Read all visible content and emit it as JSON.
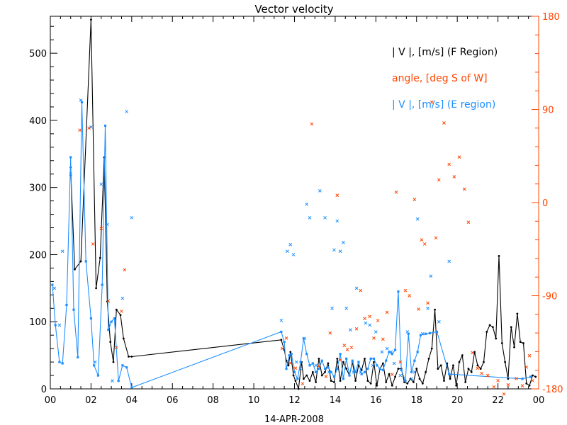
{
  "chart_data": {
    "type": "line",
    "title": "Vector velocity",
    "xlabel": "14-APR-2008",
    "x_ticks": [
      "00",
      "02",
      "04",
      "06",
      "08",
      "10",
      "12",
      "14",
      "16",
      "18",
      "20",
      "22",
      "00"
    ],
    "xlim": [
      0,
      24
    ],
    "ylim_left": [
      0,
      555
    ],
    "y_ticks_left": [
      "0",
      "100",
      "200",
      "300",
      "400",
      "500"
    ],
    "ylim_right": [
      -180,
      180
    ],
    "y_ticks_right": [
      "-180",
      "-90",
      "0",
      "90",
      "180"
    ],
    "colors": {
      "f_region": "#000000",
      "angle": "#ff4500",
      "e_region": "#1e90ff",
      "axis": "#000000",
      "right_axis": "#ff4500"
    },
    "legend": [
      {
        "label": "| V |, [m/s] (F Region)",
        "color": "#000000"
      },
      {
        "label": "angle, [deg S of W]",
        "color": "#ff4500"
      },
      {
        "label": "| V |, [m/s] (E region)",
        "color": "#1e90ff"
      }
    ],
    "series": [
      {
        "name": "| V |, [m/s] (F Region)",
        "axis": "left",
        "color": "#000000",
        "marker": "dot",
        "x": [
          1.0,
          1.2,
          1.5,
          2.0,
          2.25,
          2.45,
          2.65,
          2.8,
          2.95,
          3.1,
          3.25,
          3.45,
          3.6,
          3.85,
          4.0,
          11.35,
          11.5,
          11.6,
          11.7,
          11.8,
          11.95,
          12.05,
          12.2,
          12.35,
          12.45,
          12.6,
          12.75,
          12.9,
          13.05,
          13.2,
          13.35,
          13.5,
          13.65,
          13.8,
          13.95,
          14.1,
          14.25,
          14.4,
          14.55,
          14.7,
          14.85,
          15.0,
          15.15,
          15.3,
          15.45,
          15.6,
          15.75,
          15.9,
          16.05,
          16.2,
          16.35,
          16.5,
          16.65,
          16.8,
          16.95,
          17.1,
          17.25,
          17.4,
          17.55,
          17.7,
          17.85,
          18.0,
          18.15,
          18.3,
          18.45,
          18.6,
          18.75,
          18.9,
          19.05,
          19.2,
          19.35,
          19.5,
          19.65,
          19.8,
          19.95,
          20.1,
          20.25,
          20.4,
          20.55,
          20.7,
          20.85,
          21.0,
          21.15,
          21.3,
          21.45,
          21.6,
          21.75,
          21.9,
          22.05,
          22.2,
          22.35,
          22.5,
          22.65,
          22.8,
          22.95,
          23.1,
          23.25,
          23.4,
          23.55,
          23.7,
          23.85
        ],
        "y": [
          330,
          178,
          190,
          550,
          150,
          195,
          345,
          130,
          70,
          40,
          118,
          110,
          75,
          48,
          48,
          73,
          58,
          42,
          35,
          55,
          20,
          12,
          0,
          40,
          15,
          20,
          12,
          25,
          10,
          45,
          20,
          25,
          38,
          12,
          10,
          45,
          12,
          40,
          30,
          20,
          40,
          12,
          35,
          28,
          45,
          12,
          8,
          40,
          5,
          30,
          38,
          10,
          22,
          5,
          18,
          30,
          30,
          10,
          8,
          15,
          10,
          30,
          15,
          8,
          25,
          45,
          60,
          118,
          30,
          35,
          12,
          38,
          15,
          35,
          5,
          40,
          50,
          10,
          30,
          25,
          55,
          35,
          30,
          40,
          85,
          95,
          92,
          75,
          198,
          68,
          40,
          15,
          92,
          62,
          112,
          70,
          68,
          8,
          5,
          20,
          18
        ]
      },
      {
        "name": "| V |, [m/s] (E region)",
        "axis": "left",
        "color": "#1e90ff",
        "marker": "square",
        "x": [
          0.1,
          0.25,
          0.45,
          0.6,
          0.8,
          1.0,
          1.15,
          1.35,
          1.55,
          1.75,
          2.0,
          2.15,
          2.35,
          2.55,
          2.7,
          2.85,
          3.0,
          3.15,
          3.35,
          3.55,
          3.75,
          4.0,
          11.35,
          11.5,
          11.6,
          11.75,
          11.85,
          12.0,
          12.15,
          12.3,
          12.45,
          12.6,
          12.75,
          12.9,
          13.05,
          13.2,
          13.35,
          13.5,
          13.65,
          13.8,
          13.95,
          14.1,
          14.25,
          14.4,
          14.55,
          14.7,
          14.85,
          15.0,
          15.15,
          15.3,
          15.45,
          15.6,
          15.75,
          15.9,
          16.05,
          16.2,
          16.35,
          16.5,
          16.65,
          16.8,
          16.95,
          17.1,
          17.25,
          17.45,
          17.6,
          17.75,
          17.9,
          18.05,
          18.2,
          18.45,
          18.65,
          19.0,
          19.6,
          23.2,
          23.6
        ],
        "y": [
          155,
          95,
          40,
          38,
          125,
          345,
          118,
          47,
          427,
          190,
          105,
          35,
          20,
          155,
          392,
          88,
          100,
          105,
          12,
          35,
          32,
          2,
          85,
          70,
          30,
          50,
          52,
          25,
          15,
          40,
          75,
          52,
          35,
          38,
          25,
          30,
          42,
          30,
          32,
          25,
          18,
          30,
          52,
          15,
          45,
          20,
          42,
          25,
          40,
          22,
          25,
          30,
          45,
          45,
          35,
          30,
          28,
          42,
          55,
          52,
          58,
          145,
          28,
          12,
          82,
          25,
          42,
          55,
          80,
          82,
          83,
          85,
          22,
          15,
          18
        ]
      },
      {
        "name": "E region (unconnected)",
        "axis": "left",
        "color": "#1e90ff",
        "marker": "x",
        "x": [
          0.2,
          0.45,
          0.6,
          1.0,
          1.5,
          2.0,
          2.2,
          2.5,
          2.8,
          3.05,
          3.55,
          3.75,
          4.0,
          11.35,
          11.65,
          11.8,
          11.95,
          12.1,
          12.3,
          12.5,
          12.6,
          12.75,
          13.05,
          13.25,
          13.5,
          13.7,
          13.85,
          13.95,
          14.1,
          14.25,
          14.4,
          14.55,
          14.75,
          14.9,
          15.05,
          15.25,
          15.5,
          15.7,
          15.85,
          16.0,
          16.3,
          16.55,
          16.75,
          16.9,
          17.2,
          17.55,
          17.75,
          17.9,
          18.05,
          18.3,
          18.55,
          18.7,
          19.1,
          19.6
        ],
        "y": [
          150,
          95,
          205,
          320,
          430,
          390,
          40,
          305,
          245,
          12,
          135,
          413,
          255,
          102,
          205,
          215,
          200,
          40,
          30,
          75,
          275,
          255,
          35,
          295,
          255,
          25,
          120,
          207,
          250,
          205,
          218,
          120,
          88,
          25,
          150,
          25,
          98,
          95,
          35,
          85,
          55,
          60,
          55,
          38,
          20,
          85,
          15,
          25,
          253,
          82,
          120,
          168,
          100,
          190
        ]
      },
      {
        "name": "angle, [deg S of W]",
        "axis": "right",
        "color": "#ff4500",
        "marker": "x",
        "x": [
          1.45,
          1.9,
          2.1,
          2.5,
          2.85,
          3.25,
          3.5,
          3.65,
          11.4,
          11.6,
          11.8,
          12.05,
          12.4,
          12.85,
          13.2,
          13.55,
          13.75,
          14.1,
          14.25,
          14.45,
          14.6,
          14.8,
          15.05,
          15.25,
          15.45,
          15.7,
          15.9,
          16.1,
          16.35,
          16.55,
          16.8,
          17.0,
          17.2,
          17.45,
          17.65,
          17.9,
          18.1,
          18.25,
          18.4,
          18.55,
          18.75,
          18.95,
          19.1,
          19.35,
          19.6,
          19.85,
          20.1,
          20.35,
          20.55,
          20.75,
          21.0,
          21.2,
          21.5,
          21.8,
          22.0,
          22.3,
          22.5,
          22.9,
          23.2,
          23.4,
          23.55,
          23.7
        ],
        "y": [
          70,
          72,
          -40,
          -25,
          -95,
          -140,
          -105,
          -65,
          -141,
          -131,
          -155,
          -160,
          -175,
          76,
          -158,
          -168,
          -126,
          7,
          -152,
          -138,
          -142,
          -140,
          -122,
          -85,
          -112,
          -110,
          -131,
          -114,
          -132,
          -106,
          -166,
          10,
          -154,
          -85,
          -90,
          3,
          -103,
          -36,
          -40,
          -97,
          97,
          -34,
          22,
          77,
          37,
          25,
          44,
          13,
          -19,
          -145,
          -160,
          -165,
          -167,
          -178,
          -172,
          -185,
          -176,
          -170,
          -177,
          -159,
          -148,
          -172
        ]
      }
    ]
  }
}
